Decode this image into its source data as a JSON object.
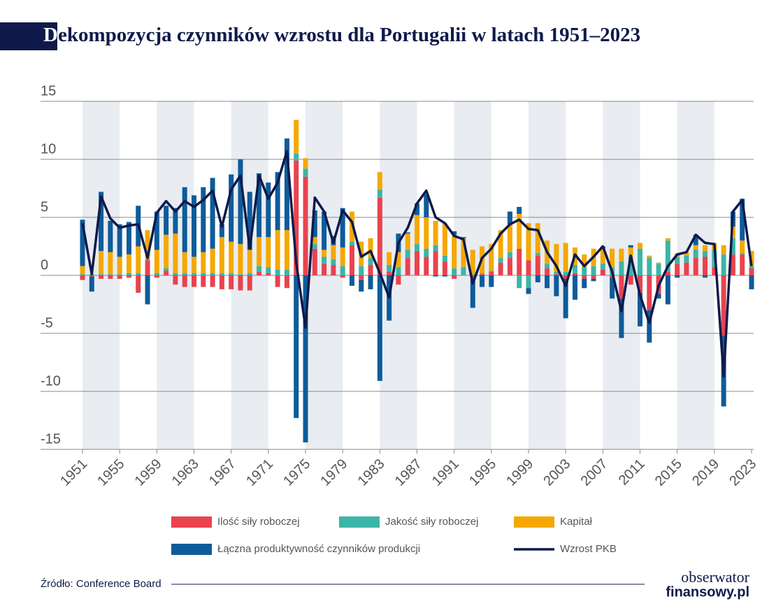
{
  "chart_data": {
    "type": "bar",
    "title": "Dekompozycja czynników wzrostu dla Portugalii w latach 1951–2023",
    "source": "Źródło: Conference Board",
    "logo": [
      "obserwator",
      "finansowy.pl"
    ],
    "x": [
      1951,
      1952,
      1953,
      1954,
      1955,
      1956,
      1957,
      1958,
      1959,
      1960,
      1961,
      1962,
      1963,
      1964,
      1965,
      1966,
      1967,
      1968,
      1969,
      1970,
      1971,
      1972,
      1973,
      1974,
      1975,
      1976,
      1977,
      1978,
      1979,
      1980,
      1981,
      1982,
      1983,
      1984,
      1985,
      1986,
      1987,
      1988,
      1989,
      1990,
      1991,
      1992,
      1993,
      1994,
      1995,
      1996,
      1997,
      1998,
      1999,
      2000,
      2001,
      2002,
      2003,
      2004,
      2005,
      2006,
      2007,
      2008,
      2009,
      2010,
      2011,
      2012,
      2013,
      2014,
      2015,
      2016,
      2017,
      2018,
      2019,
      2020,
      2021,
      2022,
      2023
    ],
    "xlim": [
      1951,
      2023
    ],
    "xticks": [
      1951,
      1955,
      1959,
      1963,
      1967,
      1971,
      1975,
      1979,
      1983,
      1987,
      1991,
      1995,
      1999,
      2003,
      2007,
      2011,
      2015,
      2019,
      2023
    ],
    "ylim": [
      -15,
      15
    ],
    "yticks": [
      -15,
      -10,
      -5,
      0,
      5,
      10,
      15
    ],
    "grid": true,
    "stacked": true,
    "series": [
      {
        "name": "Ilość siły roboczej",
        "color": "#e8434f",
        "values": [
          -0.4,
          -0.1,
          -0.3,
          -0.3,
          -0.3,
          -0.2,
          -1.5,
          1.3,
          -0.2,
          0.4,
          -0.8,
          -1.0,
          -1.0,
          -1.0,
          -1.0,
          -1.2,
          -1.2,
          -1.3,
          -1.3,
          0.3,
          0.2,
          -1.0,
          -1.1,
          9.9,
          8.5,
          2.3,
          1.0,
          0.9,
          -0.2,
          2.6,
          -0.4,
          0.9,
          6.7,
          0.3,
          -0.8,
          1.5,
          2.1,
          1.6,
          2.1,
          1.2,
          -0.3,
          0,
          -0.4,
          0.1,
          0.3,
          1.1,
          1.5,
          2.3,
          1.3,
          1.7,
          0.6,
          0.1,
          -0.3,
          0.2,
          -0.3,
          -0.3,
          0.5,
          -0.2,
          -2.0,
          -0.8,
          -1.5,
          -3.0,
          -1.6,
          0.3,
          1.0,
          1.1,
          1.5,
          1.6,
          0.7,
          -5.2,
          1.8,
          1.8,
          0.6
        ]
      },
      {
        "name": "Jakość siły roboczej",
        "color": "#3bb5a8",
        "values": [
          0.1,
          0.1,
          0.1,
          0.1,
          0.1,
          0.2,
          0.2,
          0.1,
          0.2,
          0.2,
          0.2,
          0.2,
          0.2,
          0.2,
          0.2,
          0.2,
          0.2,
          0.1,
          0.2,
          0.5,
          0.5,
          0.5,
          0.5,
          0.6,
          0.7,
          0.4,
          0.6,
          0.5,
          0.8,
          0.3,
          0.8,
          0.6,
          0.7,
          0.6,
          0.7,
          0.7,
          0.6,
          0.7,
          0.5,
          0.5,
          0.6,
          0.7,
          0.1,
          0.1,
          0.1,
          0.4,
          0.5,
          -1.1,
          -1.1,
          0.2,
          0.4,
          0.2,
          0.3,
          0.7,
          0.7,
          0.8,
          0.5,
          0.7,
          1.2,
          1.6,
          2.3,
          1.5,
          1.0,
          2.7,
          0.6,
          0.6,
          0.7,
          0.5,
          1.5,
          1.8,
          1.4,
          0.1,
          0.2
        ]
      },
      {
        "name": "Kapitał",
        "color": "#f5a800",
        "values": [
          0.7,
          0,
          2.0,
          1.9,
          1.5,
          1.6,
          2.3,
          2.5,
          2.0,
          2.9,
          3.4,
          1.8,
          1.4,
          1.8,
          2.1,
          3.1,
          2.7,
          2.6,
          2.0,
          2.5,
          2.6,
          3.4,
          3.4,
          2.9,
          0.9,
          0.6,
          0.6,
          1.2,
          1.6,
          2.6,
          2.1,
          1.7,
          1.5,
          1.1,
          1.3,
          1.4,
          2.5,
          2.7,
          2.1,
          2.8,
          2.9,
          2.5,
          2.1,
          2.3,
          2.3,
          2.4,
          2.4,
          3.0,
          3.2,
          2.6,
          2.0,
          2.4,
          2.5,
          1.5,
          1.1,
          1.5,
          1.3,
          1.6,
          1.1,
          0.8,
          0.5,
          0.2,
          0.1,
          0.2,
          0.3,
          0.3,
          0.4,
          0.5,
          0.6,
          0.8,
          1.0,
          1.1,
          1.3
        ]
      },
      {
        "name": "Łączna produktywność czynników produkcji",
        "color": "#0d5c9a",
        "values": [
          4.0,
          -1.3,
          5.1,
          2.7,
          2.8,
          2.8,
          3.5,
          -2.5,
          3.3,
          2.5,
          2.2,
          5.6,
          5.3,
          5.6,
          6.1,
          1.1,
          5.8,
          7.3,
          5.0,
          5.5,
          4.7,
          5.0,
          7.9,
          -12.3,
          -14.4,
          2.3,
          3.3,
          0.8,
          3.4,
          -0.9,
          -1.0,
          -1.2,
          -9.1,
          -3.9,
          1.6,
          0.1,
          1.0,
          2.0,
          -0.1,
          -0.1,
          0.3,
          0.1,
          -2.4,
          -1.0,
          -1.0,
          0.0,
          1.1,
          0.6,
          -0.5,
          -0.6,
          -1.1,
          -1.8,
          -3.4,
          -2.1,
          -0.8,
          -0.2,
          0.2,
          -1.8,
          -3.4,
          0.2,
          -2.9,
          -2.8,
          -0.4,
          -2.5,
          -0.2,
          0.0,
          0.9,
          -0.2,
          0.0,
          -6.1,
          1.3,
          3.6,
          -1.2
        ]
      },
      {
        "name": "Wzrost PKB",
        "color": "#0f1a4a",
        "type": "line",
        "values": [
          4.5,
          0.1,
          6.8,
          4.9,
          4.1,
          4.3,
          4.4,
          1.5,
          5.4,
          6.4,
          5.5,
          6.4,
          5.9,
          6.5,
          7.3,
          4.2,
          7.4,
          8.6,
          2.3,
          8.6,
          6.6,
          8.0,
          10.7,
          1.1,
          -4.5,
          6.7,
          5.5,
          2.8,
          5.6,
          4.6,
          1.6,
          2.1,
          0.2,
          -1.9,
          2.8,
          4.1,
          6.2,
          7.3,
          5.0,
          4.5,
          3.4,
          3.1,
          -0.7,
          1.5,
          2.3,
          3.6,
          4.4,
          4.8,
          4.0,
          3.9,
          2.0,
          0.8,
          -0.9,
          1.8,
          0.8,
          1.6,
          2.5,
          0.3,
          -3.1,
          1.7,
          -1.7,
          -4.1,
          -0.9,
          0.8,
          1.8,
          2.0,
          3.5,
          2.8,
          2.7,
          -8.7,
          5.5,
          6.5,
          0.8
        ]
      }
    ]
  }
}
